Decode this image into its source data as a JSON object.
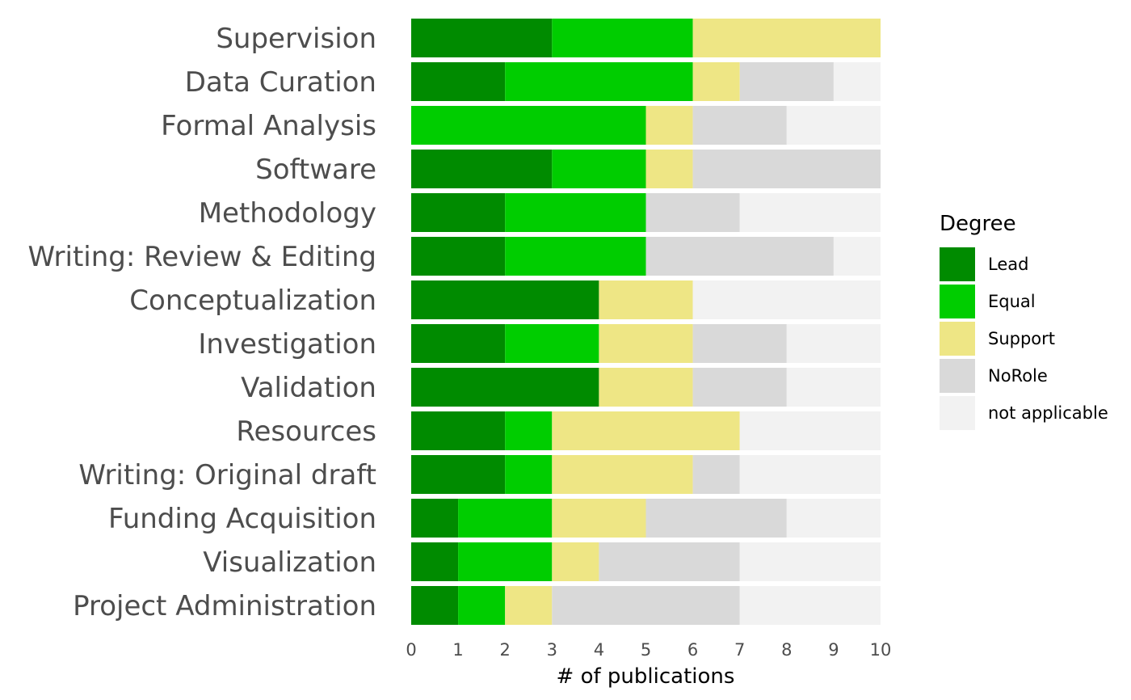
{
  "chart_data": {
    "type": "bar",
    "orientation": "horizontal",
    "stacked": true,
    "title": "",
    "xlabel": "# of publications",
    "ylabel": "",
    "xlim": [
      0,
      10
    ],
    "x_ticks": [
      "0",
      "1",
      "2",
      "3",
      "4",
      "5",
      "6",
      "7",
      "8",
      "9",
      "10"
    ],
    "grid": false,
    "legend_title": "Degree",
    "legend_position": "right",
    "categories": [
      "Supervision",
      "Data Curation",
      "Formal Analysis",
      "Software",
      "Methodology",
      "Writing: Review & Editing",
      "Conceptualization",
      "Investigation",
      "Validation",
      "Resources",
      "Writing: Original draft",
      "Funding Acquisition",
      "Visualization",
      "Project Administration"
    ],
    "series": [
      {
        "name": "Lead",
        "color": "#008b00",
        "values": [
          3,
          2,
          0,
          3,
          2,
          2,
          4,
          2,
          4,
          2,
          2,
          1,
          1,
          1
        ]
      },
      {
        "name": "Equal",
        "color": "#00cd00",
        "values": [
          3,
          4,
          5,
          2,
          3,
          3,
          0,
          2,
          0,
          1,
          1,
          2,
          2,
          1
        ]
      },
      {
        "name": "Support",
        "color": "#eee685",
        "values": [
          4,
          1,
          1,
          1,
          0,
          0,
          2,
          2,
          2,
          4,
          3,
          2,
          1,
          1
        ]
      },
      {
        "name": "NoRole",
        "color": "#d9d9d9",
        "values": [
          0,
          2,
          2,
          4,
          2,
          4,
          0,
          2,
          2,
          0,
          1,
          3,
          3,
          4
        ]
      },
      {
        "name": "not applicable",
        "color": "#f2f2f2",
        "values": [
          0,
          1,
          2,
          0,
          3,
          1,
          4,
          2,
          2,
          3,
          3,
          2,
          3,
          3
        ]
      }
    ]
  }
}
